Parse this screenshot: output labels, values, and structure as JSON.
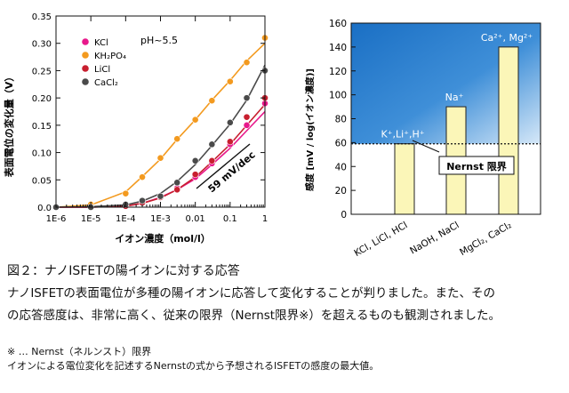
{
  "chart_data": [
    {
      "type": "line",
      "xscale": "log",
      "xlim": [
        1e-06,
        1
      ],
      "ylim": [
        0,
        0.35
      ],
      "xlabel": "イオン濃度（mol/l）",
      "ylabel": "表面電位の変化量（V）",
      "xtick_labels": [
        "1E-6",
        "1E-5",
        "1E-4",
        "1E-3",
        "0.01",
        "0.1",
        "1"
      ],
      "xtick_values": [
        1e-06,
        1e-05,
        0.0001,
        0.001,
        0.01,
        0.1,
        1
      ],
      "ytick_labels": [
        "0.0",
        "0.05",
        "0.10",
        "0.15",
        "0.20",
        "0.25",
        "0.30",
        "0.35"
      ],
      "ytick_values": [
        0,
        0.05,
        0.1,
        0.15,
        0.2,
        0.25,
        0.3,
        0.35
      ],
      "annotation": "pH~5.5",
      "slope_label": "59 mV/dec",
      "series": [
        {
          "name": "KCl",
          "color": "#e8198b",
          "x": [
            1e-06,
            1e-05,
            0.0001,
            0.0003,
            0.001,
            0.003,
            0.01,
            0.03,
            0.1,
            0.3,
            1
          ],
          "y": [
            0.0,
            0.0,
            0.003,
            0.008,
            0.02,
            0.035,
            0.055,
            0.08,
            0.115,
            0.15,
            0.19
          ],
          "curve_y": [
            0.0,
            0.0,
            0.002,
            0.007,
            0.018,
            0.032,
            0.052,
            0.078,
            0.108,
            0.14,
            0.175
          ]
        },
        {
          "name": "KH₂PO₄",
          "color": "#f39a1f",
          "x": [
            1e-06,
            1e-05,
            0.0001,
            0.0003,
            0.001,
            0.003,
            0.01,
            0.03,
            0.1,
            0.3,
            1
          ],
          "y": [
            0.0,
            0.005,
            0.025,
            0.055,
            0.09,
            0.125,
            0.16,
            0.195,
            0.23,
            0.265,
            0.31
          ],
          "curve_y": [
            0.0,
            0.004,
            0.028,
            0.056,
            0.088,
            0.124,
            0.16,
            0.196,
            0.232,
            0.268,
            0.3
          ]
        },
        {
          "name": "LiCl",
          "color": "#c81f2f",
          "x": [
            1e-06,
            1e-05,
            0.0001,
            0.0003,
            0.001,
            0.003,
            0.01,
            0.03,
            0.1,
            0.3,
            1
          ],
          "y": [
            0.0,
            0.0,
            0.002,
            0.008,
            0.018,
            0.032,
            0.06,
            0.085,
            0.12,
            0.165,
            0.2
          ],
          "curve_y": [
            0.0,
            0.0,
            0.002,
            0.007,
            0.017,
            0.032,
            0.055,
            0.083,
            0.115,
            0.15,
            0.188
          ]
        },
        {
          "name": "CaCl₂",
          "color": "#4a4a4a",
          "x": [
            1e-06,
            1e-05,
            0.0001,
            0.0003,
            0.001,
            0.003,
            0.01,
            0.03,
            0.1,
            0.3,
            1
          ],
          "y": [
            0.0,
            0.0,
            0.005,
            0.012,
            0.02,
            0.045,
            0.085,
            0.115,
            0.155,
            0.2,
            0.25
          ],
          "curve_y": [
            0.0,
            0.001,
            0.004,
            0.011,
            0.025,
            0.047,
            0.078,
            0.113,
            0.152,
            0.196,
            0.26
          ]
        }
      ]
    },
    {
      "type": "bar",
      "categories": [
        "KCl, LiCl, HCl",
        "NaOH, NaCl",
        "MgCl₂, CaCl₂"
      ],
      "values": [
        59,
        90,
        140
      ],
      "bar_labels": [
        "K⁺,Li⁺,H⁺",
        "Na⁺",
        "Ca²⁺, Mg²⁺"
      ],
      "ylabel": "感度 [mV / log(イオン濃度)]",
      "ylim": [
        0,
        160
      ],
      "ytick_labels": [
        "0",
        "20",
        "40",
        "60",
        "80",
        "100",
        "120",
        "140",
        "160"
      ],
      "nernst_limit": 59,
      "nernst_label": "Nernst 限界",
      "colors": {
        "bar": "#fbf6b8",
        "bar_edge": "#222222",
        "region_top": "#1a6fc4",
        "region_bottom": "#cfe4f7"
      }
    }
  ],
  "caption": {
    "title": "図２：ナノISFETの陽イオンに対する応答",
    "line1": "ナノISFETの表面電位が多種の陽イオンに応答して変化することが判りました。また、その",
    "line2": "の応答感度は、非常に高く、従来の限界（Nernst限界※）を超えるものも観測されました。",
    "note1": "※ … Nernst（ネルンスト）限界",
    "note2": "イオンによる電位変化を記述するNernstの式から予想されるISFETの感度の最大値。"
  }
}
